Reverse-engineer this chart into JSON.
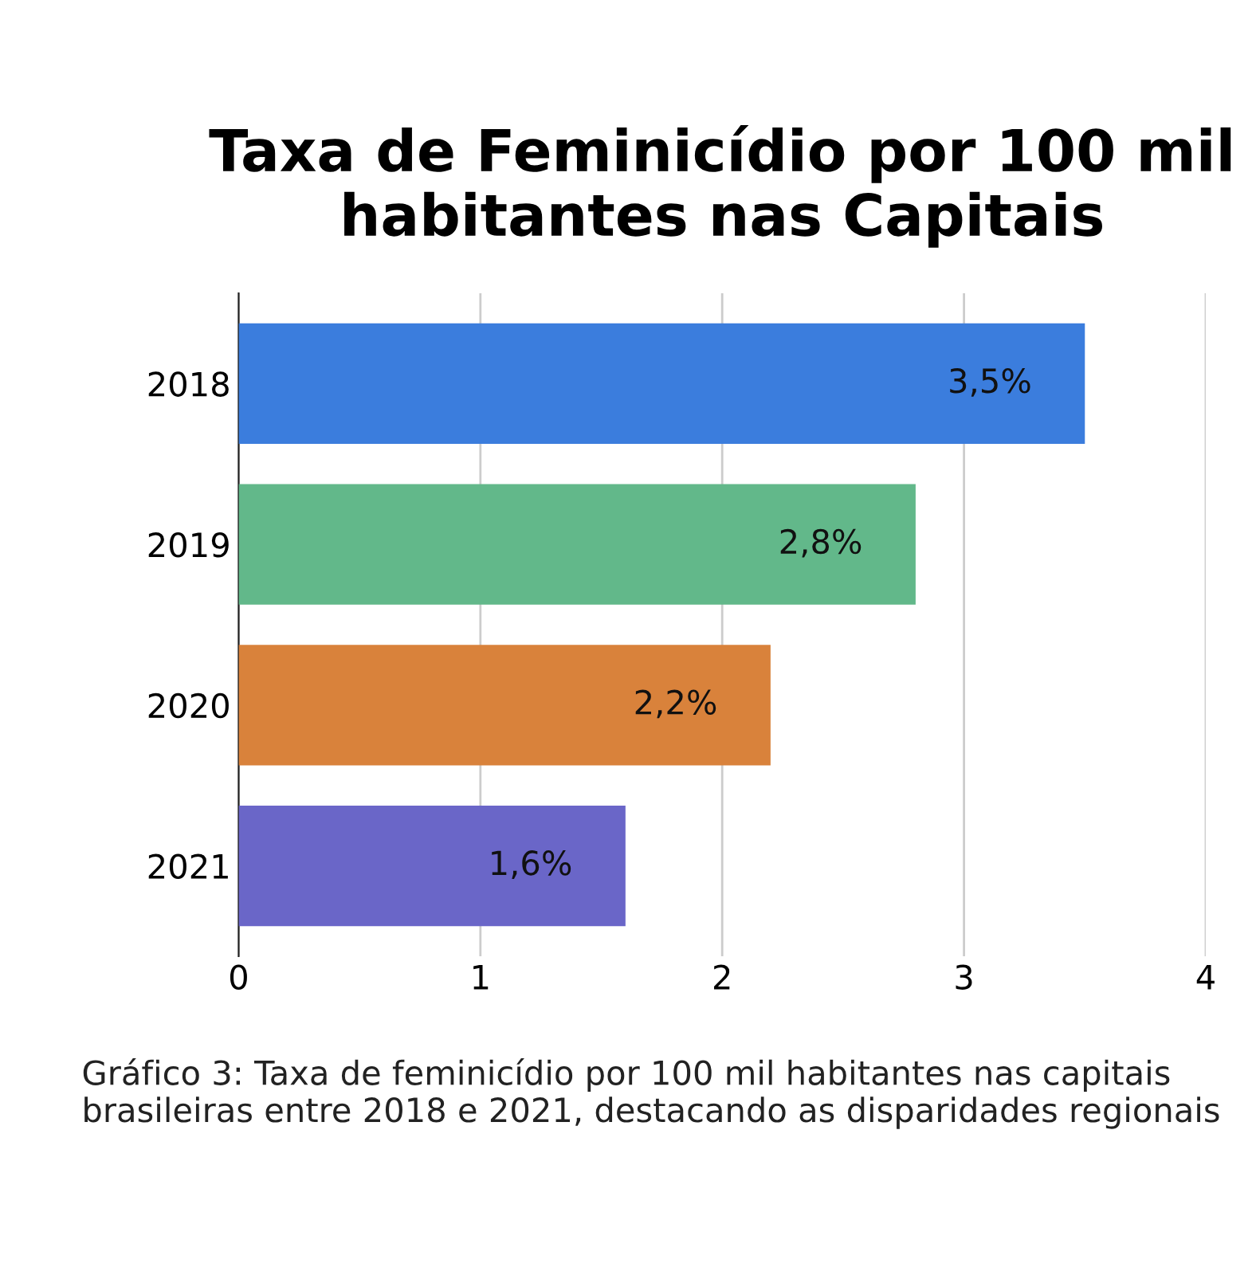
{
  "chart_data": {
    "type": "bar",
    "orientation": "horizontal",
    "title": "Taxa de Feminicídio por 100 mil habitantes nas Capitais",
    "categories": [
      "2018",
      "2019",
      "2020",
      "2021"
    ],
    "values": [
      3.5,
      2.8,
      2.2,
      1.6
    ],
    "colors": [
      "#3b7ddd",
      "#62b88a",
      "#d9823b",
      "#6a66c8"
    ],
    "value_labels": [
      "3,5%",
      "2,8%",
      "2,2%",
      "1,6%"
    ],
    "xlim": [
      0,
      4
    ],
    "xticks": [
      0,
      1,
      2,
      3,
      4
    ],
    "grid": "x",
    "annotations": [
      "Gráfico 3: Taxa de feminicídio por 100 mil habitantes nas capitais brasileiras entre 2018 e 2021, destacando as disparidades regionais"
    ]
  }
}
